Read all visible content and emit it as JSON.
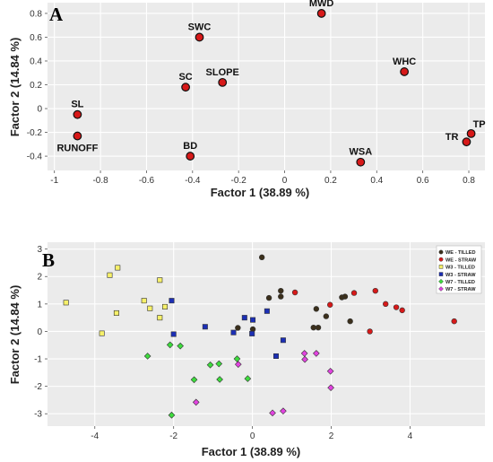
{
  "chart_data": [
    {
      "panel": "A",
      "type": "scatter",
      "xlabel": "Factor 1 (38.89 %)",
      "ylabel": "Factor 2 (14.84 %)",
      "xlim": [
        -1.03,
        0.87
      ],
      "ylim": [
        -0.52,
        0.89
      ],
      "xticks": [
        -1,
        -0.8,
        -0.6,
        -0.4,
        -0.2,
        0,
        0.2,
        0.4,
        0.6,
        0.8
      ],
      "yticks": [
        -0.4,
        -0.2,
        0,
        0.2,
        0.4,
        0.6,
        0.8
      ],
      "grid": true,
      "marker_color": "#d71919",
      "points": [
        {
          "label": "MWD",
          "x": 0.16,
          "y": 0.8,
          "label_pos": "above"
        },
        {
          "label": "SWC",
          "x": -0.37,
          "y": 0.6,
          "label_pos": "above"
        },
        {
          "label": "WHC",
          "x": 0.52,
          "y": 0.31,
          "label_pos": "above"
        },
        {
          "label": "SC",
          "x": -0.43,
          "y": 0.18,
          "label_pos": "above"
        },
        {
          "label": "SLOPE",
          "x": -0.27,
          "y": 0.22,
          "label_pos": "above"
        },
        {
          "label": "SL",
          "x": -0.9,
          "y": -0.05,
          "label_pos": "above"
        },
        {
          "label": "RUNOFF",
          "x": -0.9,
          "y": -0.23,
          "label_pos": "below"
        },
        {
          "label": "BD",
          "x": -0.41,
          "y": -0.4,
          "label_pos": "above"
        },
        {
          "label": "WSA",
          "x": 0.33,
          "y": -0.45,
          "label_pos": "above"
        },
        {
          "label": "TR",
          "x": 0.79,
          "y": -0.28,
          "label_pos": "left"
        },
        {
          "label": "TP",
          "x": 0.81,
          "y": -0.21,
          "label_pos": "right"
        }
      ]
    },
    {
      "panel": "B",
      "type": "scatter",
      "xlabel": "Factor 1 (38.89 %)",
      "ylabel": "Factor 2 (14.84 %)",
      "xlim": [
        -5.2,
        5.9
      ],
      "ylim": [
        -3.45,
        3.25
      ],
      "xticks": [
        -4,
        -2,
        0,
        2,
        4
      ],
      "yticks": [
        -3,
        -2,
        -1,
        0,
        1,
        2,
        3
      ],
      "grid": true,
      "legend": "top-right",
      "series": [
        {
          "name": "WE - TILLED",
          "color": "#3b2f1b",
          "shape": "circle",
          "x": [
            0.24,
            0.72,
            0.42,
            0.72,
            1.62,
            1.87,
            2.27,
            2.35,
            2.48,
            1.55,
            1.67,
            -0.37,
            0.01
          ],
          "y": [
            2.7,
            1.48,
            1.22,
            1.27,
            0.82,
            0.55,
            1.24,
            1.27,
            0.37,
            0.14,
            0.14,
            0.13,
            0.08
          ]
        },
        {
          "name": "WE - STRAW",
          "color": "#d71919",
          "shape": "circle",
          "x": [
            1.08,
            1.97,
            2.58,
            3.12,
            3.38,
            3.65,
            3.8,
            2.98,
            5.12
          ],
          "y": [
            1.42,
            0.97,
            1.4,
            1.48,
            1.0,
            0.88,
            0.77,
            0.0,
            0.37
          ]
        },
        {
          "name": "W3 - TILLED",
          "color": "#f6f06a",
          "shape": "square",
          "x": [
            -4.73,
            -3.42,
            -3.62,
            -3.45,
            -2.35,
            -3.82,
            -2.75,
            -2.6,
            -2.22,
            -2.35
          ],
          "y": [
            1.05,
            2.32,
            2.05,
            0.67,
            1.87,
            -0.07,
            1.12,
            0.84,
            0.9,
            0.5
          ]
        },
        {
          "name": "W3 - STRAW",
          "color": "#1c2fb5",
          "shape": "square",
          "x": [
            -2.05,
            -2.0,
            -1.2,
            -0.48,
            -0.2,
            0.01,
            -0.01,
            0.6,
            0.78,
            0.37
          ],
          "y": [
            1.12,
            -0.1,
            0.17,
            -0.04,
            0.5,
            0.42,
            -0.08,
            -0.9,
            -0.32,
            0.74
          ]
        },
        {
          "name": "W7 - TILLED",
          "color": "#3ddc3d",
          "shape": "diamond",
          "x": [
            -2.66,
            -2.09,
            -1.83,
            -1.07,
            -0.85,
            -0.83,
            -0.39,
            -0.12,
            -1.48,
            -2.05
          ],
          "y": [
            -0.9,
            -0.49,
            -0.53,
            -1.22,
            -1.18,
            -1.75,
            -1.0,
            -1.72,
            -1.76,
            -3.05
          ]
        },
        {
          "name": "W7 - STRAW",
          "color": "#e243e0",
          "shape": "diamond",
          "x": [
            -1.43,
            -0.36,
            1.32,
            1.33,
            1.62,
            1.98,
            1.99,
            0.78,
            0.51
          ],
          "y": [
            -2.58,
            -1.2,
            -0.8,
            -1.02,
            -0.8,
            -1.45,
            -2.05,
            -2.9,
            -2.97
          ]
        }
      ]
    }
  ]
}
